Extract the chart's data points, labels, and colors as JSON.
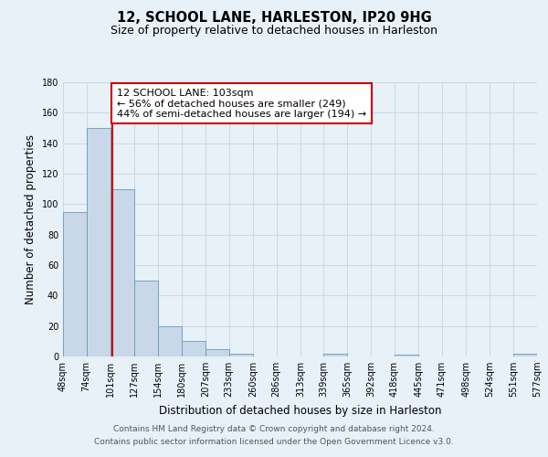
{
  "title": "12, SCHOOL LANE, HARLESTON, IP20 9HG",
  "subtitle": "Size of property relative to detached houses in Harleston",
  "xlabel": "Distribution of detached houses by size in Harleston",
  "ylabel": "Number of detached properties",
  "bin_edges": [
    48,
    74,
    101,
    127,
    154,
    180,
    207,
    233,
    260,
    286,
    313,
    339,
    365,
    392,
    418,
    445,
    471,
    498,
    524,
    551,
    577
  ],
  "bin_labels": [
    "48sqm",
    "74sqm",
    "101sqm",
    "127sqm",
    "154sqm",
    "180sqm",
    "207sqm",
    "233sqm",
    "260sqm",
    "286sqm",
    "313sqm",
    "339sqm",
    "365sqm",
    "392sqm",
    "418sqm",
    "445sqm",
    "471sqm",
    "498sqm",
    "524sqm",
    "551sqm",
    "577sqm"
  ],
  "counts": [
    95,
    150,
    110,
    50,
    20,
    10,
    5,
    2,
    0,
    0,
    0,
    2,
    0,
    0,
    1,
    0,
    0,
    0,
    0,
    2
  ],
  "property_value": 103,
  "bar_color": "#c8d8e8",
  "bar_edge_color": "#6699bb",
  "red_line_color": "#cc0000",
  "annotation_text": "12 SCHOOL LANE: 103sqm\n← 56% of detached houses are smaller (249)\n44% of semi-detached houses are larger (194) →",
  "annotation_box_color": "#ffffff",
  "annotation_box_edge": "#cc0000",
  "ylim": [
    0,
    180
  ],
  "yticks": [
    0,
    20,
    40,
    60,
    80,
    100,
    120,
    140,
    160,
    180
  ],
  "grid_color": "#ccd8e4",
  "background_color": "#e8f0f8",
  "footer_text": "Contains HM Land Registry data © Crown copyright and database right 2024.\nContains public sector information licensed under the Open Government Licence v3.0.",
  "title_fontsize": 10.5,
  "subtitle_fontsize": 9,
  "axis_label_fontsize": 8.5,
  "tick_fontsize": 7,
  "annotation_fontsize": 8,
  "footer_fontsize": 6.5
}
